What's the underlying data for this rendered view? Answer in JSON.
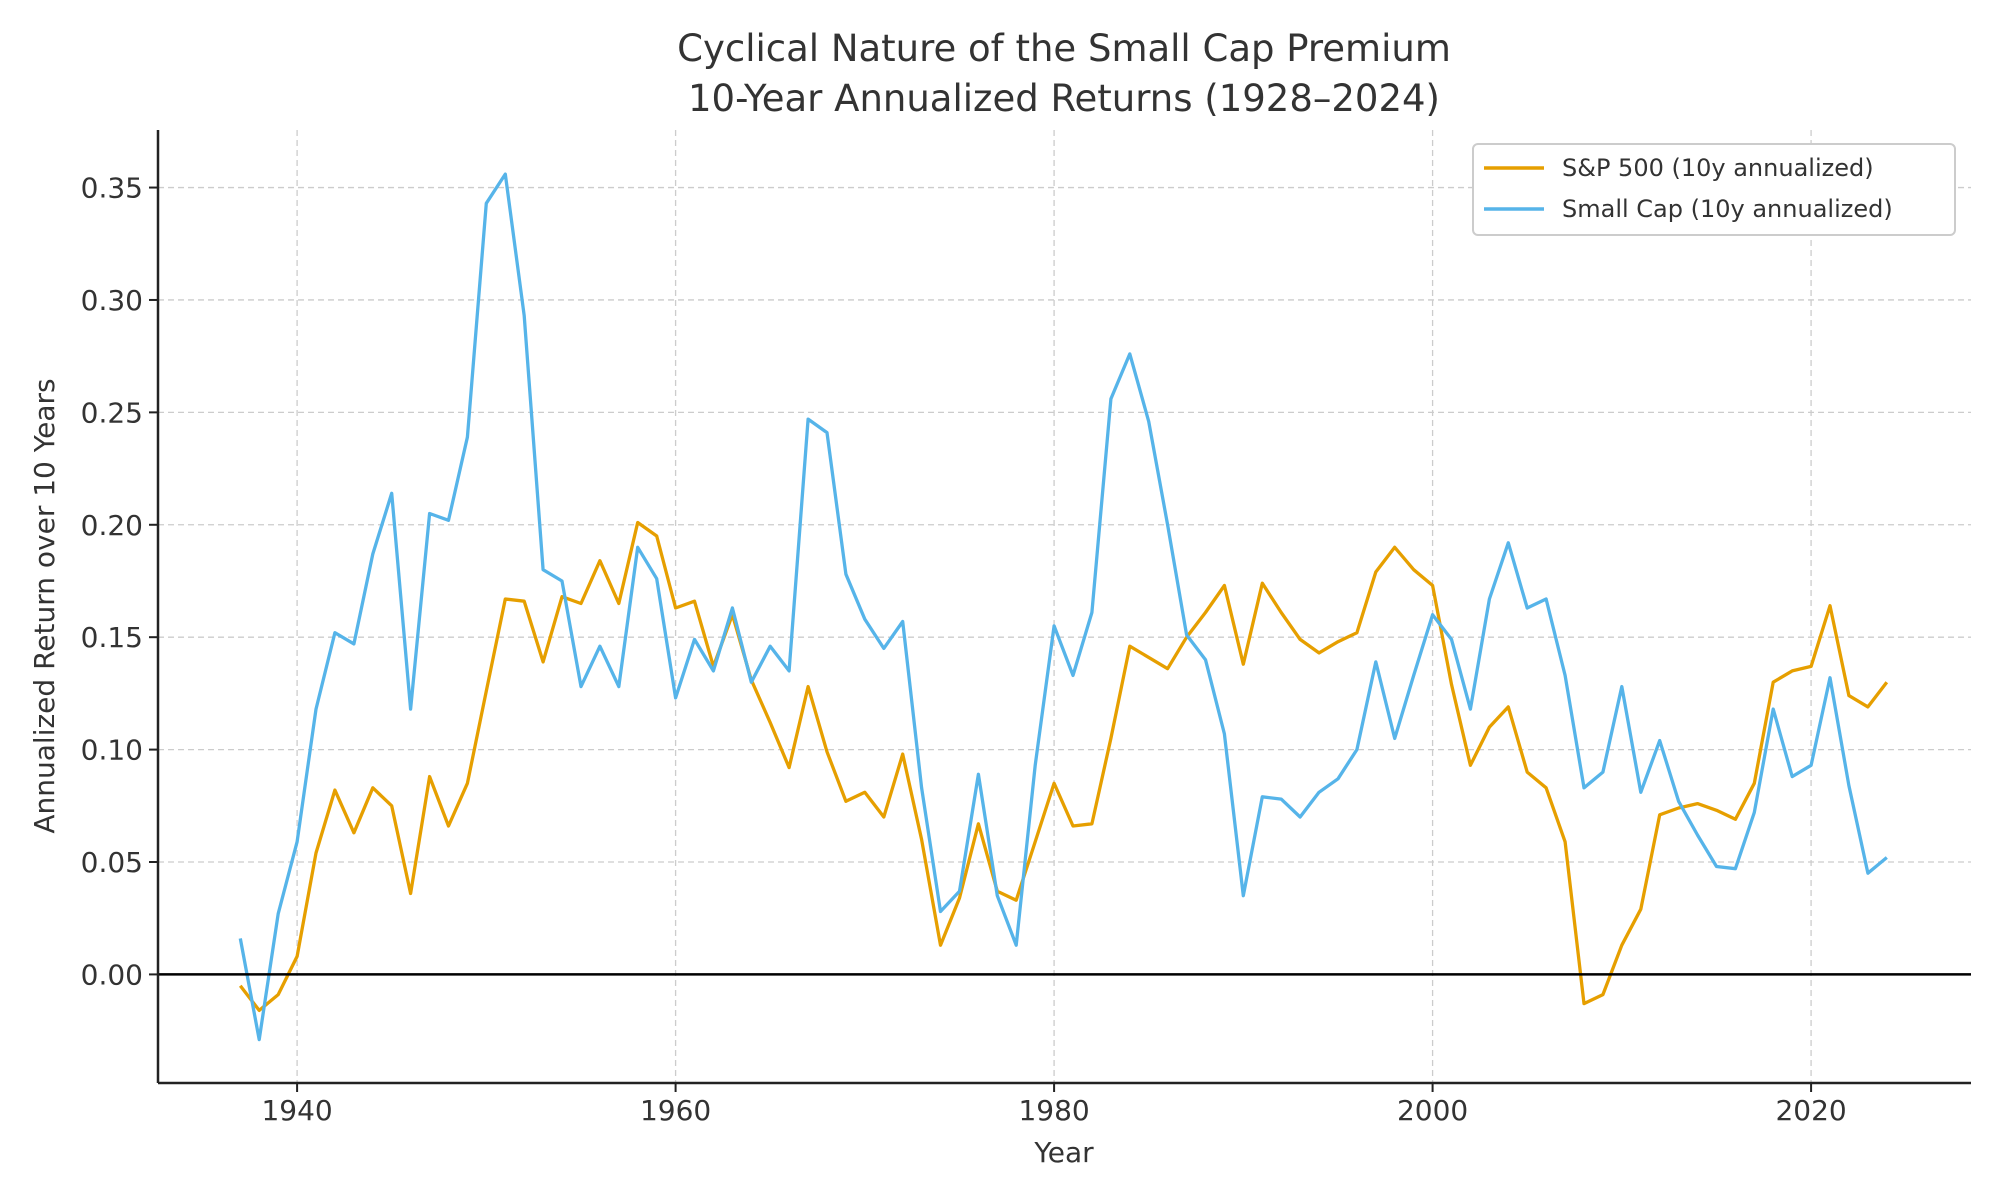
{
  "chart_data": {
    "type": "line",
    "title": "Cyclical Nature of the Small Cap Premium",
    "subtitle": "10-Year Annualized Returns (1928–2024)",
    "xlabel": "Year",
    "ylabel": "Annualized Return over 10 Years",
    "xlim": [
      1932.65,
      2028.45
    ],
    "ylim": [
      -0.0483,
      0.3756
    ],
    "xticks": [
      1940,
      1960,
      1980,
      2000,
      2020
    ],
    "yticks": [
      "0.00",
      "0.05",
      "0.10",
      "0.15",
      "0.20",
      "0.25",
      "0.30",
      "0.35"
    ],
    "grid": true,
    "zero_line": true,
    "legend_position": "top-right",
    "x_start": 1937,
    "series": [
      {
        "name": "S&P 500 (10y annualized)",
        "color": "#E69F00",
        "values": [
          -0.005,
          -0.016,
          -0.009,
          0.008,
          0.054,
          0.082,
          0.063,
          0.083,
          0.075,
          0.036,
          0.088,
          0.066,
          0.085,
          0.126,
          0.167,
          0.166,
          0.139,
          0.168,
          0.165,
          0.184,
          0.165,
          0.201,
          0.195,
          0.163,
          0.166,
          0.137,
          0.16,
          0.131,
          0.112,
          0.092,
          0.128,
          0.099,
          0.077,
          0.081,
          0.07,
          0.098,
          0.06,
          0.013,
          0.034,
          0.067,
          0.037,
          0.033,
          0.059,
          0.085,
          0.066,
          0.067,
          0.105,
          0.146,
          0.141,
          0.136,
          0.15,
          0.161,
          0.173,
          0.138,
          0.174,
          0.161,
          0.149,
          0.143,
          0.148,
          0.152,
          0.179,
          0.19,
          0.18,
          0.173,
          0.129,
          0.093,
          0.11,
          0.119,
          0.09,
          0.083,
          0.059,
          -0.013,
          -0.009,
          0.013,
          0.029,
          0.071,
          0.074,
          0.076,
          0.073,
          0.069,
          0.085,
          0.13,
          0.135,
          0.137,
          0.164,
          0.124,
          0.119,
          0.13
        ]
      },
      {
        "name": "Small Cap (10y annualized)",
        "color": "#56B4E9",
        "values": [
          0.016,
          -0.029,
          0.027,
          0.059,
          0.118,
          0.152,
          0.147,
          0.187,
          0.214,
          0.118,
          0.205,
          0.202,
          0.239,
          0.343,
          0.356,
          0.293,
          0.18,
          0.175,
          0.128,
          0.146,
          0.128,
          0.19,
          0.176,
          0.123,
          0.149,
          0.135,
          0.163,
          0.13,
          0.146,
          0.135,
          0.247,
          0.241,
          0.178,
          0.158,
          0.145,
          0.157,
          0.083,
          0.028,
          0.037,
          0.089,
          0.035,
          0.013,
          0.093,
          0.155,
          0.133,
          0.161,
          0.256,
          0.276,
          0.246,
          0.2,
          0.151,
          0.14,
          0.107,
          0.035,
          0.079,
          0.078,
          0.07,
          0.081,
          0.087,
          0.1,
          0.139,
          0.105,
          0.133,
          0.16,
          0.149,
          0.118,
          0.167,
          0.192,
          0.163,
          0.167,
          0.133,
          0.083,
          0.09,
          0.128,
          0.081,
          0.104,
          0.077,
          0.062,
          0.048,
          0.047,
          0.072,
          0.118,
          0.088,
          0.093,
          0.132,
          0.084,
          0.045,
          0.052
        ]
      }
    ]
  }
}
